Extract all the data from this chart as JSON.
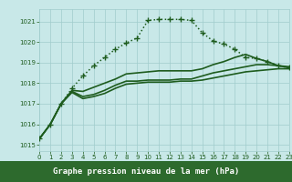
{
  "title": "Graphe pression niveau de la mer (hPa)",
  "bg_color": "#c8e8e8",
  "line_color": "#1e5c1e",
  "grid_color": "#a0cccc",
  "footer_bg": "#2d6a2d",
  "footer_text_color": "#ffffff",
  "xlim": [
    0,
    23
  ],
  "ylim": [
    1014.7,
    1021.6
  ],
  "yticks": [
    1015,
    1016,
    1017,
    1018,
    1019,
    1020,
    1021
  ],
  "xticks": [
    0,
    1,
    2,
    3,
    4,
    5,
    6,
    7,
    8,
    9,
    10,
    11,
    12,
    13,
    14,
    15,
    16,
    17,
    18,
    19,
    20,
    21,
    22,
    23
  ],
  "series": [
    {
      "x": [
        0,
        1,
        2,
        3,
        4,
        5,
        6,
        7,
        8,
        9,
        10,
        11,
        12,
        13,
        14,
        15,
        16,
        17,
        18,
        19,
        20,
        21,
        22,
        23
      ],
      "y": [
        1015.3,
        1016.0,
        1017.0,
        1017.55,
        1017.25,
        1017.35,
        1017.5,
        1017.75,
        1017.95,
        1018.0,
        1018.05,
        1018.05,
        1018.05,
        1018.1,
        1018.1,
        1018.15,
        1018.25,
        1018.35,
        1018.45,
        1018.55,
        1018.6,
        1018.65,
        1018.7,
        1018.7
      ],
      "linestyle": "-",
      "marker": null,
      "linewidth": 1.2
    },
    {
      "x": [
        0,
        1,
        2,
        3,
        4,
        5,
        6,
        7,
        8,
        9,
        10,
        11,
        12,
        13,
        14,
        15,
        16,
        17,
        18,
        19,
        20,
        21,
        22,
        23
      ],
      "y": [
        1015.3,
        1016.0,
        1017.0,
        1017.6,
        1017.35,
        1017.45,
        1017.65,
        1017.9,
        1018.1,
        1018.1,
        1018.15,
        1018.15,
        1018.15,
        1018.2,
        1018.2,
        1018.35,
        1018.5,
        1018.6,
        1018.7,
        1018.8,
        1018.9,
        1018.9,
        1018.85,
        1018.8
      ],
      "linestyle": "-",
      "marker": null,
      "linewidth": 1.2
    },
    {
      "x": [
        0,
        1,
        2,
        3,
        4,
        5,
        6,
        7,
        8,
        9,
        10,
        11,
        12,
        13,
        14,
        15,
        16,
        17,
        18,
        19,
        20,
        21,
        22,
        23
      ],
      "y": [
        1015.3,
        1016.0,
        1017.0,
        1017.65,
        1017.6,
        1017.8,
        1018.0,
        1018.2,
        1018.45,
        1018.5,
        1018.55,
        1018.6,
        1018.6,
        1018.6,
        1018.6,
        1018.7,
        1018.9,
        1019.05,
        1019.25,
        1019.4,
        1019.2,
        1019.05,
        1018.85,
        1018.75
      ],
      "linestyle": "-",
      "marker": null,
      "linewidth": 1.2
    },
    {
      "x": [
        0,
        1,
        2,
        3,
        4,
        5,
        6,
        7,
        8,
        9,
        10,
        11,
        12,
        13,
        14,
        15,
        16,
        17,
        18,
        19,
        20,
        21,
        22,
        23
      ],
      "y": [
        1015.3,
        1016.0,
        1017.0,
        1017.75,
        1018.35,
        1018.85,
        1019.25,
        1019.65,
        1019.95,
        1020.2,
        1021.05,
        1021.1,
        1021.1,
        1021.1,
        1021.05,
        1020.45,
        1020.05,
        1019.9,
        1019.65,
        1019.25,
        1019.2,
        1019.05,
        1018.85,
        1018.75
      ],
      "linestyle": "dotted",
      "marker": "+",
      "linewidth": 1.1,
      "markersize": 5
    }
  ]
}
